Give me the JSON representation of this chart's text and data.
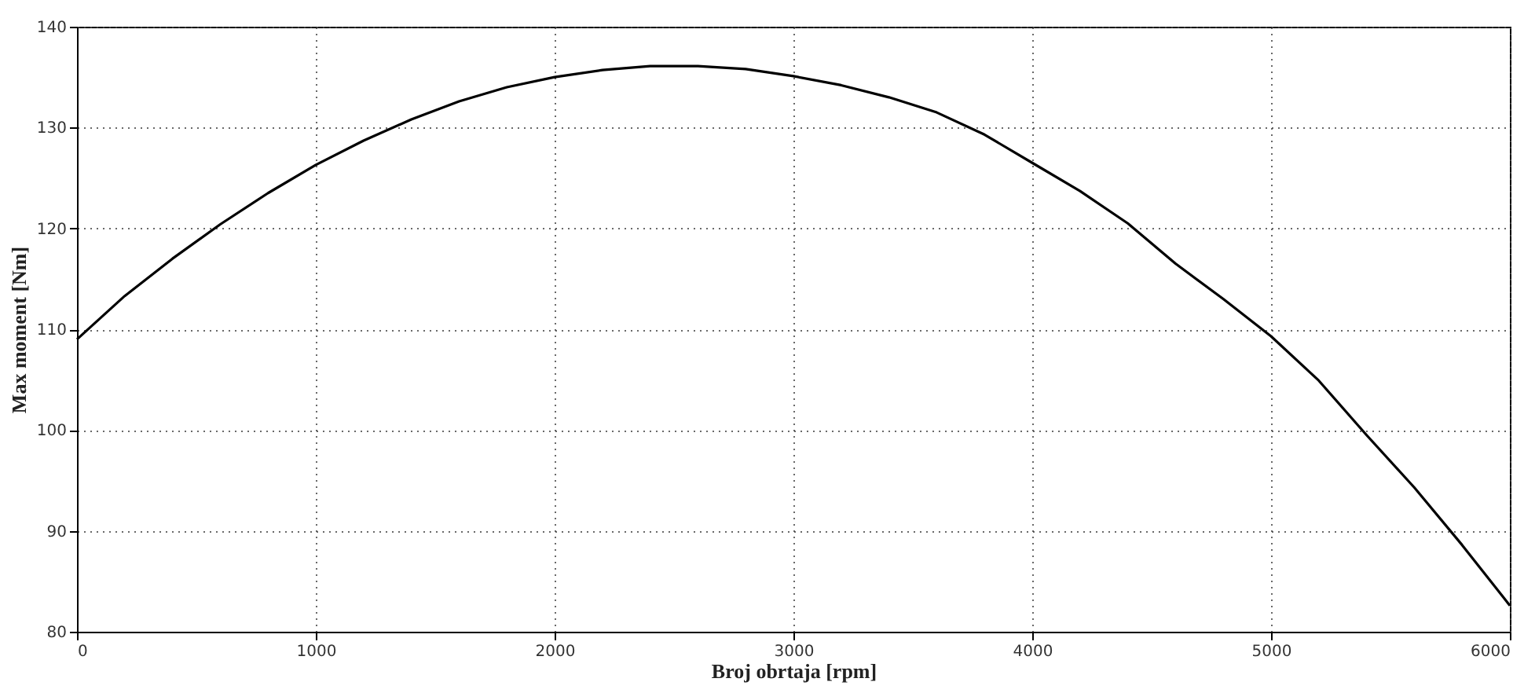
{
  "chart_data": {
    "type": "line",
    "xlabel": "Broj obrtaja [rpm]",
    "ylabel": "Max moment [Nm]",
    "x": [
      0,
      200,
      400,
      600,
      800,
      1000,
      1200,
      1400,
      1600,
      1800,
      2000,
      2200,
      2400,
      2600,
      2800,
      3000,
      3200,
      3400,
      3600,
      3800,
      4000,
      4200,
      4400,
      4600,
      4800,
      5000,
      5200,
      5400,
      5600,
      5800,
      6000
    ],
    "series": [
      {
        "color": "#000000",
        "values": [
          109,
          113.3,
          117,
          120.4,
          123.5,
          126.3,
          128.7,
          130.8,
          132.6,
          134,
          135,
          135.7,
          136.1,
          136.1,
          135.8,
          135.1,
          134.2,
          133,
          131.5,
          129.3,
          126.5,
          123.7,
          120.5,
          116.5,
          113,
          109.3,
          104.9,
          99.5,
          94.3,
          88.6,
          82.6
        ]
      }
    ],
    "xlim": [
      0,
      6000
    ],
    "xticks": [
      0,
      1000,
      2000,
      3000,
      4000,
      5000,
      6000
    ],
    "ylim": [
      80,
      140
    ],
    "yticks": [
      80,
      90,
      100,
      110,
      120,
      130,
      140
    ],
    "grid": true,
    "line_style": "solid",
    "marker": "none"
  }
}
